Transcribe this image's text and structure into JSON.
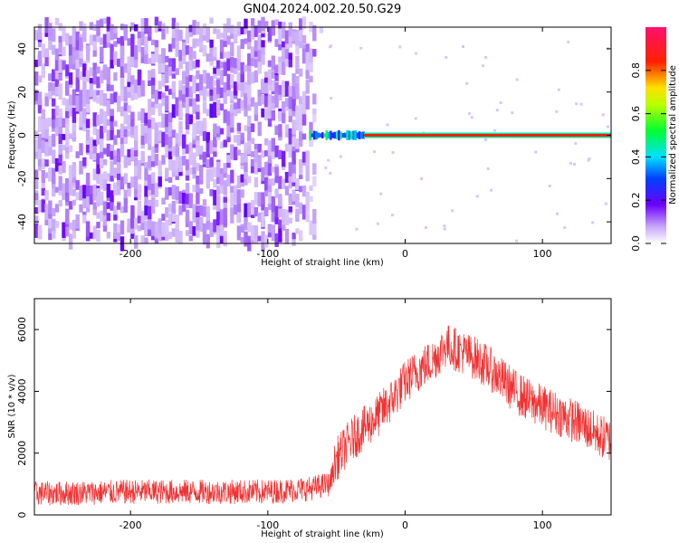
{
  "title": "GN04.2024.002.20.50.G29",
  "chart_data": [
    {
      "type": "heatmap",
      "xlabel": "Height of straight line (km)",
      "ylabel": "Frequency (Hz)",
      "xlim": [
        -270,
        150
      ],
      "ylim": [
        -50,
        50
      ],
      "x_ticks": [
        "-200",
        "-100",
        "0",
        "100"
      ],
      "x_tick_values": [
        -200,
        -100,
        0,
        100
      ],
      "y_ticks": [
        "-40",
        "-20",
        "0",
        "20",
        "40"
      ],
      "y_tick_values": [
        -40,
        -20,
        0,
        20,
        40
      ],
      "colorbar": {
        "label": "Normalized spectral amplitude",
        "range": [
          0,
          1
        ],
        "ticks": [
          "0.0",
          "0.2",
          "0.4",
          "0.6",
          "0.8"
        ],
        "tick_values": [
          0.0,
          0.2,
          0.4,
          0.6,
          0.8
        ],
        "colormap": "rainbow (white-purple-blue-cyan-green-yellow-red-pink)"
      },
      "features": {
        "noise_region_x": [
          -270,
          -60
        ],
        "noise_amplitude": 0.15,
        "carrier_line_start_x": -70,
        "carrier_frequency": 0,
        "carrier_amplitude": 0.85
      }
    },
    {
      "type": "line",
      "xlabel": "Height of straight line (km)",
      "ylabel": "SNR (10 * v/v)",
      "xlim": [
        -270,
        150
      ],
      "ylim": [
        0,
        7000
      ],
      "color": "#f03232",
      "x_ticks": [
        "-200",
        "-100",
        "0",
        "100"
      ],
      "x_tick_values": [
        -200,
        -100,
        0,
        100
      ],
      "y_ticks": [
        "0",
        "2000",
        "4000",
        "6000"
      ],
      "y_tick_values": [
        0,
        2000,
        4000,
        6000
      ],
      "x": [
        -270,
        -250,
        -200,
        -150,
        -100,
        -70,
        -55,
        -50,
        -40,
        -30,
        -20,
        -10,
        0,
        10,
        20,
        30,
        40,
        50,
        60,
        70,
        80,
        90,
        100,
        110,
        120,
        130,
        140,
        150
      ],
      "y": [
        700,
        700,
        750,
        750,
        750,
        850,
        1000,
        1800,
        2400,
        2800,
        3200,
        3700,
        4300,
        4700,
        5000,
        5500,
        5300,
        5100,
        4800,
        4400,
        4000,
        3700,
        3500,
        3300,
        3100,
        2900,
        2600,
        2400
      ],
      "noise_spread": 400
    }
  ]
}
